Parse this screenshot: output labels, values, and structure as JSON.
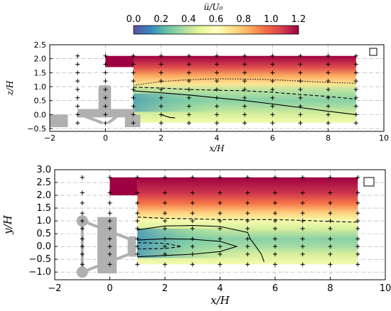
{
  "colorbar": {
    "label": "u̅/U₀",
    "ticks": [
      "0.0",
      "0.2",
      "0.4",
      "0.6",
      "0.8",
      "1.0",
      "1.2"
    ],
    "range": [
      0.0,
      1.2
    ],
    "colormap": "Spectral_r",
    "stops": [
      "#5e4fa2",
      "#3288bd",
      "#66c2a5",
      "#abdda4",
      "#e6f598",
      "#ffffbf",
      "#fee08b",
      "#fdae61",
      "#f46d43",
      "#d53e4f",
      "#9e0142"
    ]
  },
  "chart_data": [
    {
      "type": "heatmap",
      "panel": "side view",
      "xlabel": "x/H",
      "ylabel": "z/H",
      "xlim": [
        -2,
        10
      ],
      "ylim": [
        -0.6,
        2.5
      ],
      "xticks": [
        "−2",
        "0",
        "2",
        "4",
        "6",
        "8",
        "10"
      ],
      "yticks": [
        "−0.5",
        "0.0",
        "0.5",
        "1.0",
        "1.5",
        "2.0",
        "2.5"
      ],
      "grid": "dash-dot",
      "legend": "square marker top-right",
      "measured_region": {
        "x": [
          1.0,
          9.0
        ],
        "y": [
          -0.3,
          2.1
        ],
        "upstream_strip": {
          "x": [
            0.0,
            1.0
          ],
          "y": [
            1.7,
            2.1
          ]
        }
      },
      "field_profile": {
        "y": [
          -0.3,
          0.0,
          0.5,
          0.9,
          1.1,
          1.4,
          1.7,
          2.1
        ],
        "u": [
          0.55,
          0.45,
          0.3,
          0.4,
          0.7,
          0.85,
          1.05,
          1.2
        ]
      },
      "contours": [
        {
          "style": "dotted",
          "x": [
            1.0,
            2.0,
            3.0,
            4.0,
            5.0,
            6.0,
            7.0,
            8.0,
            9.0
          ],
          "y": [
            1.05,
            1.18,
            1.25,
            1.28,
            1.27,
            1.25,
            1.2,
            1.15,
            1.12
          ]
        },
        {
          "style": "dashed",
          "x": [
            1.0,
            2.0,
            3.0,
            4.0,
            5.0,
            6.0,
            7.0,
            8.0,
            9.0
          ],
          "y": [
            0.98,
            0.95,
            0.9,
            0.87,
            0.85,
            0.8,
            0.72,
            0.65,
            0.55
          ]
        },
        {
          "style": "solid",
          "x": [
            1.0,
            2.0,
            3.0,
            4.0,
            5.0,
            6.0,
            7.0,
            8.0,
            9.0
          ],
          "y": [
            0.85,
            0.78,
            0.7,
            0.6,
            0.5,
            0.38,
            0.25,
            0.12,
            0.0
          ]
        },
        {
          "style": "solid",
          "x": [
            2.0,
            2.3,
            2.5
          ],
          "y": [
            0.0,
            -0.1,
            -0.12
          ]
        }
      ],
      "markers": {
        "x": [
          -1.0,
          0.0,
          1.0,
          2.0,
          3.0,
          4.0,
          5.0,
          6.0,
          7.0,
          8.0,
          9.0
        ],
        "y": [
          -0.3,
          0.0,
          0.3,
          0.6,
          0.9,
          1.2,
          1.5,
          1.8,
          2.1
        ]
      }
    },
    {
      "type": "heatmap",
      "panel": "top view",
      "xlabel": "x/H",
      "ylabel": "y/H",
      "xlim": [
        -2,
        10
      ],
      "ylim": [
        -1.3,
        3.0
      ],
      "xticks": [
        "−2",
        "0",
        "2",
        "4",
        "6",
        "8",
        "10"
      ],
      "yticks": [
        "−1.0",
        "−0.5",
        "0.0",
        "0.5",
        "1.0",
        "1.5",
        "2.0",
        "2.5",
        "3.0"
      ],
      "grid": "dash-dot",
      "legend": "square marker top-right",
      "measured_region": {
        "x": [
          1.0,
          9.0
        ],
        "y": [
          -0.7,
          2.7
        ],
        "upstream_strip": {
          "x": [
            0.0,
            1.0
          ],
          "y": [
            2.0,
            2.7
          ]
        }
      },
      "field_profile": {
        "y": [
          -0.7,
          -0.3,
          0.0,
          0.3,
          0.7,
          1.0,
          1.3,
          1.7,
          2.1,
          2.7
        ],
        "u": [
          0.55,
          0.45,
          0.35,
          0.3,
          0.45,
          0.55,
          0.75,
          0.95,
          1.1,
          1.2
        ]
      },
      "contours": [
        {
          "style": "dashed",
          "x": [
            1.0,
            2.0,
            3.0,
            4.0,
            5.0,
            6.0,
            7.0,
            8.0,
            9.0
          ],
          "y": [
            1.15,
            1.1,
            1.08,
            1.05,
            1.05,
            1.05,
            1.02,
            0.98,
            0.95
          ]
        },
        {
          "style": "solid",
          "x": [
            1.0,
            2.0,
            3.0,
            4.0,
            5.0,
            5.1,
            5.3,
            5.5,
            5.6
          ],
          "y": [
            0.65,
            0.8,
            0.82,
            0.78,
            0.55,
            0.3,
            0.0,
            -0.3,
            -0.6
          ]
        },
        {
          "style": "solid",
          "x": [
            1.0,
            2.0,
            3.0,
            4.0,
            4.6,
            4.0,
            3.0,
            2.0,
            1.0
          ],
          "y": [
            0.25,
            0.3,
            0.28,
            0.2,
            0.0,
            -0.2,
            -0.3,
            -0.35,
            -0.4
          ]
        },
        {
          "style": "dashed",
          "x": [
            1.0,
            2.0,
            2.6,
            2.0,
            1.0
          ],
          "y": [
            0.15,
            0.12,
            0.0,
            -0.08,
            -0.1
          ]
        }
      ],
      "markers": {
        "x": [
          -1.0,
          0.0,
          1.0,
          2.0,
          3.0,
          4.0,
          5.0,
          6.0,
          7.0,
          8.0,
          9.0
        ],
        "y": [
          -0.7,
          -0.3,
          0.0,
          0.3,
          0.7,
          1.0,
          1.3,
          1.7,
          2.1,
          2.7
        ]
      }
    }
  ]
}
